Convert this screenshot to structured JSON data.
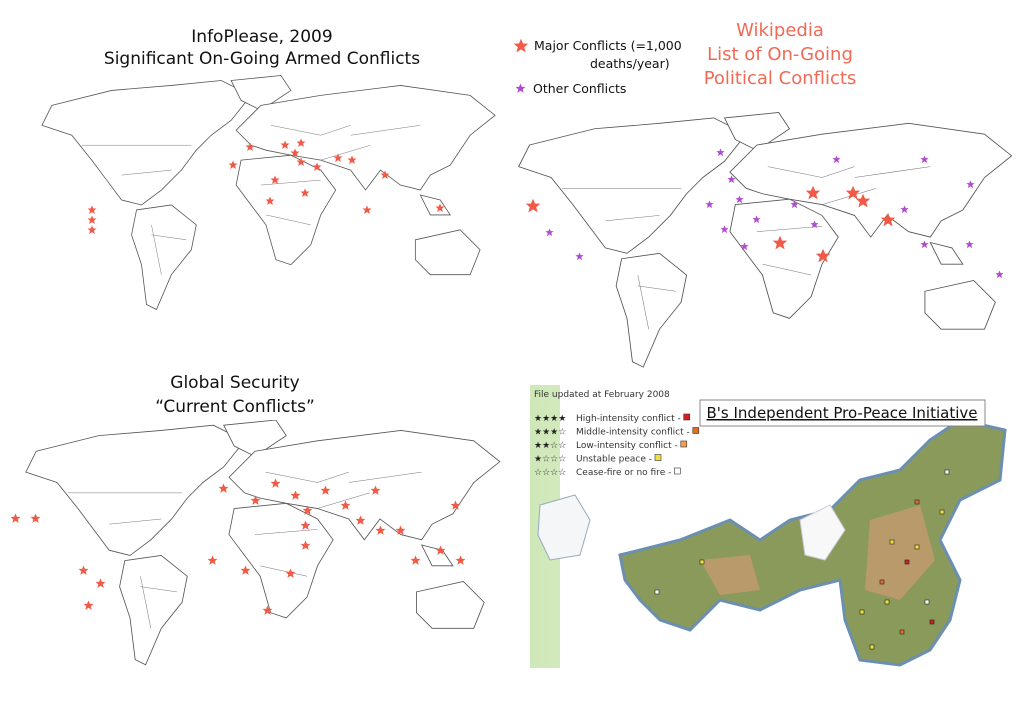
{
  "panels": [
    {
      "title_lines": [
        "InfoPlease, 2009",
        "Significant On-Going Armed Conflicts"
      ]
    },
    {
      "title_lines": [
        "Wikipedia",
        "List of On-Going",
        "Political Conflicts"
      ],
      "legend": [
        {
          "label_lines": [
            "Major Conflicts (=1,000",
            "deaths/year)"
          ]
        },
        {
          "label_lines": [
            "Other Conflicts"
          ]
        }
      ]
    },
    {
      "title_lines": [
        "Global Security",
        "“Current Conflicts”"
      ]
    },
    {
      "file_note": "File updated at February 2008",
      "title": "B's Independent Pro-Peace Initiative",
      "legend": [
        {
          "stars": "★★★★",
          "label": "High-intensity conflict -",
          "color": "#d42020"
        },
        {
          "stars": "★★★☆",
          "label": "Middle-intensity conflict -",
          "color": "#e07020"
        },
        {
          "stars": "★★☆☆",
          "label": "Low-intensity conflict -",
          "color": "#f0a050"
        },
        {
          "stars": "★☆☆☆",
          "label": "Unstable peace -",
          "color": "#f0e040"
        },
        {
          "stars": "☆☆☆☆",
          "label": "Cease-fire or no fire -",
          "color": "#ffffff"
        }
      ]
    }
  ]
}
